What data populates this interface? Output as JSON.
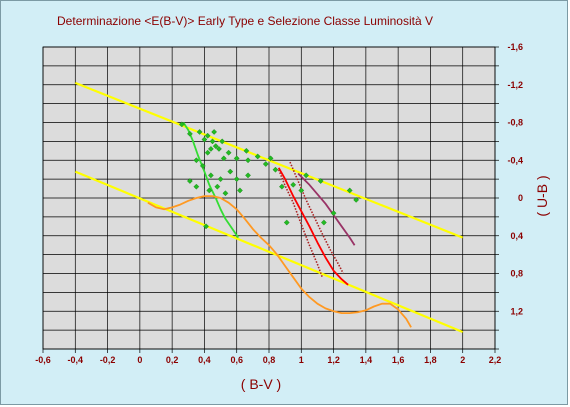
{
  "chart_data": {
    "type": "scatter",
    "title": "Determinazione <E(B-V)> Early Type e Selezione Classe Luminosità V",
    "xlabel": "( B-V )",
    "ylabel": "( U-B )",
    "xlim": [
      -0.6,
      2.2
    ],
    "ylim": [
      -1.6,
      1.6
    ],
    "y_inverted": true,
    "grid": true,
    "x_ticks": [
      "-0,6",
      "-0,4",
      "-0,2",
      "0",
      "0,2",
      "0,4",
      "0,6",
      "0,8",
      "1",
      "1,2",
      "1,4",
      "1,6",
      "1,8",
      "2",
      "2,2"
    ],
    "y_ticks": [
      "-1,6",
      "-1,2",
      "-0,8",
      "-0,4",
      "0",
      "0,4",
      "0,8",
      "1,2"
    ],
    "colors": {
      "background": "#d2eef6",
      "plot": "#dcdcdc",
      "grid": "#000000",
      "text": "#8b0000",
      "yellow": "#ffff00",
      "green": "#33dd33",
      "orange": "#ff9922",
      "red": "#ff0000",
      "dotted": "#aa2222",
      "purple": "#993366",
      "points": "#22bb22"
    },
    "series": [
      {
        "kind": "line",
        "color": "yellow",
        "x": [
          -0.4,
          2.0
        ],
        "y": [
          -1.22,
          0.42
        ]
      },
      {
        "kind": "line",
        "color": "yellow",
        "x": [
          -0.4,
          2.0
        ],
        "y": [
          -0.28,
          1.42
        ]
      },
      {
        "kind": "line",
        "color": "green",
        "x": [
          0.27,
          0.3,
          0.33,
          0.36,
          0.4,
          0.43,
          0.47,
          0.5,
          0.53,
          0.57,
          0.61
        ],
        "y": [
          -0.8,
          -0.72,
          -0.6,
          -0.45,
          -0.28,
          -0.14,
          0.0,
          0.12,
          0.22,
          0.32,
          0.42
        ]
      },
      {
        "kind": "line",
        "color": "orange",
        "x": [
          0.05,
          0.1,
          0.15,
          0.2,
          0.25,
          0.3,
          0.35,
          0.4,
          0.45,
          0.5,
          0.55,
          0.6,
          0.65,
          0.7,
          0.75,
          0.8,
          0.85,
          0.9,
          0.95,
          1.0,
          1.05,
          1.1,
          1.15,
          1.2,
          1.25,
          1.3,
          1.35,
          1.4,
          1.45,
          1.5,
          1.55,
          1.6,
          1.65,
          1.68
        ],
        "y": [
          0.05,
          0.1,
          0.12,
          0.1,
          0.07,
          0.03,
          0.0,
          -0.02,
          -0.02,
          0.0,
          0.05,
          0.12,
          0.22,
          0.33,
          0.42,
          0.5,
          0.6,
          0.72,
          0.84,
          0.96,
          1.05,
          1.12,
          1.17,
          1.2,
          1.22,
          1.22,
          1.21,
          1.19,
          1.15,
          1.12,
          1.12,
          1.18,
          1.28,
          1.37
        ]
      },
      {
        "kind": "line",
        "color": "red",
        "x": [
          0.86,
          0.9,
          0.95,
          1.0,
          1.05,
          1.1,
          1.15,
          1.2,
          1.25,
          1.29
        ],
        "y": [
          -0.32,
          -0.2,
          -0.02,
          0.14,
          0.3,
          0.47,
          0.63,
          0.77,
          0.86,
          0.92
        ]
      },
      {
        "kind": "dotted",
        "color": "dotted",
        "x": [
          0.86,
          0.9,
          0.95,
          1.0,
          1.05,
          1.1,
          1.13
        ],
        "y": [
          -0.3,
          -0.13,
          0.05,
          0.28,
          0.5,
          0.7,
          0.84
        ]
      },
      {
        "kind": "dotted",
        "color": "dotted",
        "x": [
          0.93,
          0.98,
          1.03,
          1.08,
          1.13,
          1.18,
          1.23,
          1.26
        ],
        "y": [
          -0.38,
          -0.18,
          0.02,
          0.2,
          0.38,
          0.55,
          0.7,
          0.8
        ]
      },
      {
        "kind": "line",
        "color": "purple",
        "x": [
          0.98,
          1.05,
          1.1,
          1.15,
          1.2,
          1.25,
          1.3,
          1.33
        ],
        "y": [
          -0.26,
          -0.14,
          -0.04,
          0.06,
          0.18,
          0.3,
          0.42,
          0.5
        ]
      },
      {
        "kind": "scatter",
        "color": "points",
        "points": [
          [
            0.26,
            -0.78
          ],
          [
            0.31,
            -0.68
          ],
          [
            0.37,
            -0.7
          ],
          [
            0.4,
            -0.62
          ],
          [
            0.42,
            -0.66
          ],
          [
            0.46,
            -0.7
          ],
          [
            0.45,
            -0.6
          ],
          [
            0.47,
            -0.55
          ],
          [
            0.49,
            -0.52
          ],
          [
            0.51,
            -0.6
          ],
          [
            0.42,
            -0.48
          ],
          [
            0.44,
            -0.52
          ],
          [
            0.52,
            -0.42
          ],
          [
            0.55,
            -0.48
          ],
          [
            0.6,
            -0.42
          ],
          [
            0.66,
            -0.5
          ],
          [
            0.67,
            -0.4
          ],
          [
            0.73,
            -0.44
          ],
          [
            0.35,
            -0.4
          ],
          [
            0.39,
            -0.34
          ],
          [
            0.44,
            -0.24
          ],
          [
            0.5,
            -0.2
          ],
          [
            0.56,
            -0.28
          ],
          [
            0.6,
            -0.2
          ],
          [
            0.67,
            -0.24
          ],
          [
            0.31,
            -0.18
          ],
          [
            0.35,
            -0.12
          ],
          [
            0.43,
            -0.08
          ],
          [
            0.48,
            -0.12
          ],
          [
            0.53,
            -0.05
          ],
          [
            0.62,
            -0.08
          ],
          [
            0.78,
            -0.36
          ],
          [
            0.81,
            -0.42
          ],
          [
            0.84,
            -0.3
          ],
          [
            0.88,
            -0.12
          ],
          [
            0.95,
            -0.14
          ],
          [
            1.0,
            -0.08
          ],
          [
            1.03,
            -0.24
          ],
          [
            1.12,
            -0.18
          ],
          [
            1.2,
            0.16
          ],
          [
            1.14,
            0.26
          ],
          [
            1.3,
            -0.08
          ],
          [
            1.34,
            0.02
          ],
          [
            0.91,
            0.26
          ],
          [
            0.41,
            0.3
          ]
        ]
      }
    ]
  }
}
